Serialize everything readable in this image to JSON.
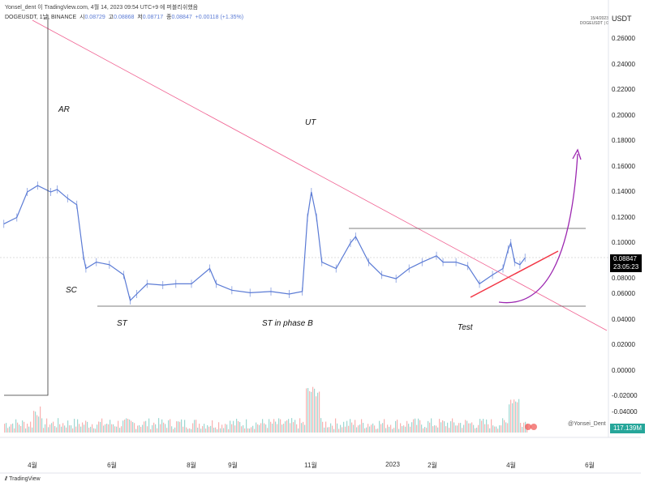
{
  "header": {
    "publisher": "Yonsel_dent 이 TradingView.com, 4월 14, 2023 09:54 UTC+9 에 퍼블리쉬했음",
    "symbol": "DOGEUSDT, 1날, BINANCE",
    "open_label": "시",
    "open": "0.08729",
    "high_label": "고",
    "high": "0.08868",
    "low_label": "저",
    "low": "0.08717",
    "close_label": "종",
    "close": "0.08847",
    "change": "+0.00118 (+1.35%)"
  },
  "top_right": {
    "date": "15/4/2023",
    "symbol_info": "DOGEUSDT | 0",
    "currency": "USDT"
  },
  "price_tag": {
    "price": "0.08847",
    "countdown": "23:05:23"
  },
  "volume_tag": "117.139M",
  "watermark": "@Yonsei_Dent",
  "footer": "TradingView",
  "colors": {
    "candle": "#5b7bd5",
    "trend_down": "#f06292",
    "support": "#555555",
    "uptrend": "#f23645",
    "projection": "#9c27b0",
    "volume_up": "#26a69a",
    "volume_down": "#ef5350"
  },
  "annotations": [
    "AR",
    "UT",
    "SC",
    "ST",
    "ST in phase B",
    "Test"
  ],
  "chart_data": {
    "type": "line",
    "title": "",
    "y_ticks": [
      "0.26000",
      "0.24000",
      "0.22000",
      "0.20000",
      "0.18000",
      "0.16000",
      "0.14000",
      "0.12000",
      "0.10000",
      "0.08000",
      "0.06000",
      "0.04000",
      "0.02000",
      "0.00000",
      "-0.02000",
      "-0.04000"
    ],
    "x_ticks": [
      "4월",
      "6월",
      "8월",
      "9월",
      "11월",
      "2023",
      "2월",
      "4월",
      "6월"
    ],
    "ylim": [
      -0.04,
      0.27
    ],
    "series": [
      {
        "points": [
          [
            "2022-03-10",
            0.115
          ],
          [
            "2022-03-20",
            0.12
          ],
          [
            "2022-03-28",
            0.14
          ],
          [
            "2022-04-05",
            0.145
          ],
          [
            "2022-04-15",
            0.14
          ],
          [
            "2022-04-20",
            0.142
          ],
          [
            "2022-04-28",
            0.135
          ],
          [
            "2022-05-05",
            0.13
          ],
          [
            "2022-05-10",
            0.09
          ],
          [
            "2022-05-12",
            0.08
          ],
          [
            "2022-05-20",
            0.085
          ],
          [
            "2022-05-30",
            0.083
          ],
          [
            "2022-06-10",
            0.075
          ],
          [
            "2022-06-15",
            0.055
          ],
          [
            "2022-06-20",
            0.06
          ],
          [
            "2022-06-28",
            0.068
          ],
          [
            "2022-07-10",
            0.067
          ],
          [
            "2022-07-20",
            0.068
          ],
          [
            "2022-08-01",
            0.068
          ],
          [
            "2022-08-15",
            0.08
          ],
          [
            "2022-08-20",
            0.068
          ],
          [
            "2022-09-01",
            0.063
          ],
          [
            "2022-09-15",
            0.061
          ],
          [
            "2022-10-01",
            0.062
          ],
          [
            "2022-10-15",
            0.06
          ],
          [
            "2022-10-25",
            0.062
          ],
          [
            "2022-10-29",
            0.12
          ],
          [
            "2022-11-01",
            0.14
          ],
          [
            "2022-11-05",
            0.12
          ],
          [
            "2022-11-09",
            0.085
          ],
          [
            "2022-11-20",
            0.08
          ],
          [
            "2022-12-01",
            0.1
          ],
          [
            "2022-12-05",
            0.105
          ],
          [
            "2022-12-15",
            0.085
          ],
          [
            "2022-12-25",
            0.075
          ],
          [
            "2023-01-05",
            0.072
          ],
          [
            "2023-01-15",
            0.08
          ],
          [
            "2023-01-25",
            0.085
          ],
          [
            "2023-02-05",
            0.09
          ],
          [
            "2023-02-10",
            0.085
          ],
          [
            "2023-02-20",
            0.085
          ],
          [
            "2023-03-01",
            0.082
          ],
          [
            "2023-03-10",
            0.068
          ],
          [
            "2023-03-20",
            0.075
          ],
          [
            "2023-03-28",
            0.08
          ],
          [
            "2023-04-01",
            0.095
          ],
          [
            "2023-04-03",
            0.1
          ],
          [
            "2023-04-06",
            0.085
          ],
          [
            "2023-04-10",
            0.083
          ],
          [
            "2023-04-14",
            0.08847
          ]
        ]
      }
    ]
  }
}
